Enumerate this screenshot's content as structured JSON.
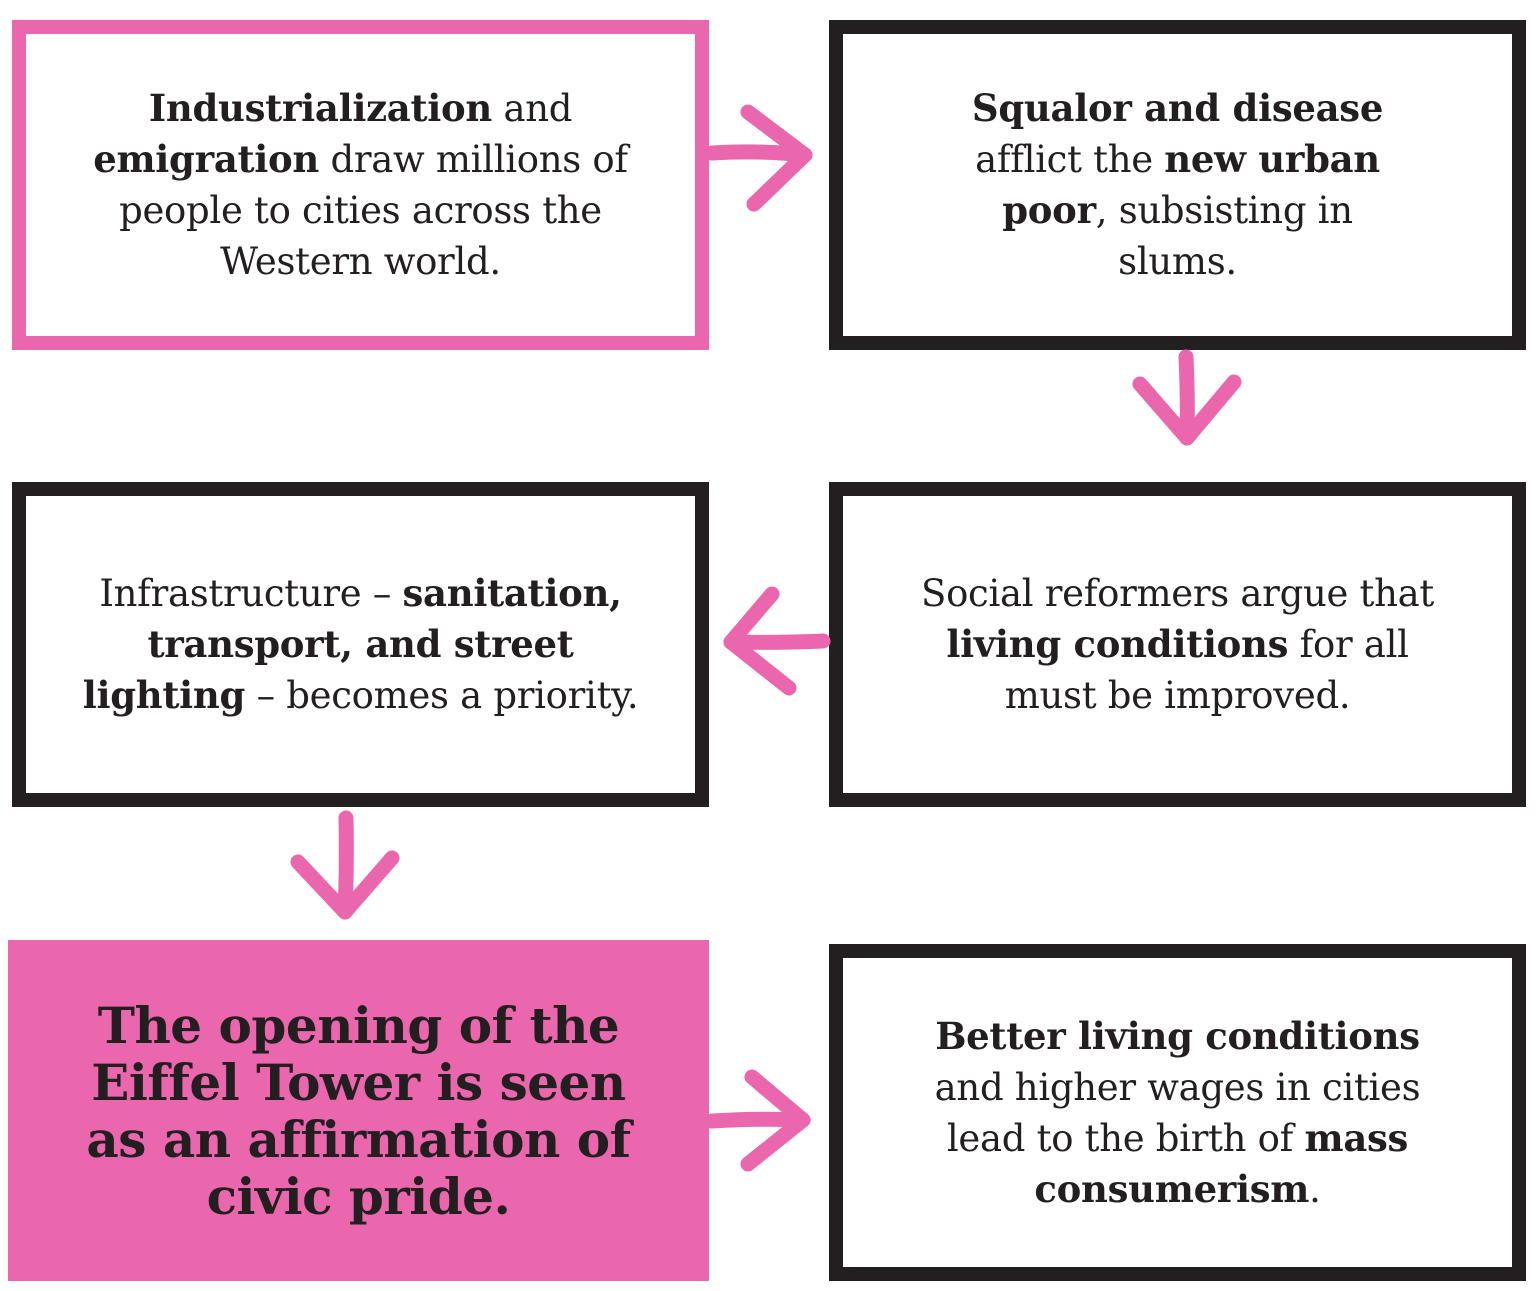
{
  "boxes": {
    "industrialization": {
      "b1": "Industrialization",
      "t1": " and ",
      "b2": "emigration",
      "t2": " draw millions of people to cities across the Western world."
    },
    "squalor": {
      "b1": "Squalor and disease",
      "t1": " afflict the ",
      "b2": "new urban poor",
      "t2": ", subsisting in slums."
    },
    "reformers": {
      "t1": "Social reformers argue that ",
      "b1": "living conditions",
      "t2": " for all must be improved."
    },
    "infrastructure": {
      "t1": "Infrastructure – ",
      "b1": "sanitation, transport, and street lighting",
      "t2": " – becomes a priority."
    },
    "eiffel": {
      "text": "The opening of the Eiffel Tower is seen as an affirmation of civic pride."
    },
    "consumerism": {
      "b1": "Better living conditions",
      "t1": " and higher wages in cities lead to the birth of ",
      "b2": "mass consumerism",
      "t2": "."
    }
  },
  "colors": {
    "accent_pink": "#ea67ad",
    "ink": "#231f20",
    "background": "#ffffff"
  }
}
